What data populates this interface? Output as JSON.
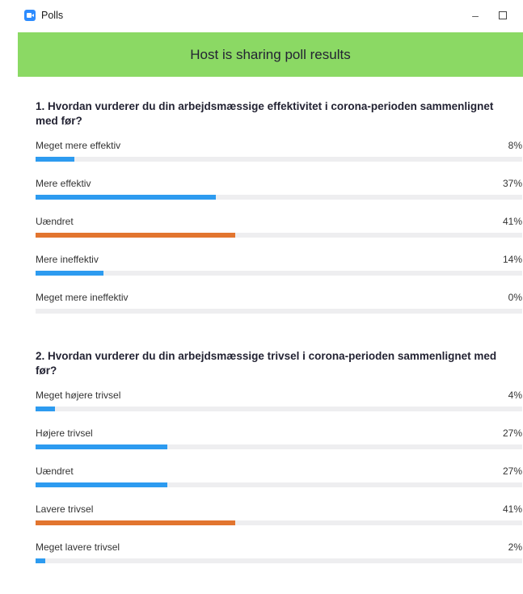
{
  "window": {
    "title": "Polls",
    "minimize_glyph": "–",
    "close_glyph": "✕"
  },
  "banner": {
    "text": "Host is sharing poll results",
    "color": "#8bd964"
  },
  "colors": {
    "bar": "#2d9bf0",
    "bar_top": "#e2752f",
    "track": "#eeeef0"
  },
  "questions": [
    {
      "text": "1. Hvordan vurderer du din arbejdsmæssige effektivitet i corona-perioden sammenlignet med før?",
      "answers": [
        {
          "label": "Meget mere effektiv",
          "percent_text": "8%",
          "percent": 8,
          "top": false
        },
        {
          "label": "Mere effektiv",
          "percent_text": "37%",
          "percent": 37,
          "top": false
        },
        {
          "label": "Uændret",
          "percent_text": "41%",
          "percent": 41,
          "top": true
        },
        {
          "label": "Mere ineffektiv",
          "percent_text": "14%",
          "percent": 14,
          "top": false
        },
        {
          "label": "Meget mere ineffektiv",
          "percent_text": "0%",
          "percent": 0,
          "top": false
        }
      ]
    },
    {
      "text": "2. Hvordan vurderer du din arbejdsmæssige trivsel i corona-perioden sammenlignet med før?",
      "answers": [
        {
          "label": "Meget højere trivsel",
          "percent_text": "4%",
          "percent": 4,
          "top": false
        },
        {
          "label": "Højere trivsel",
          "percent_text": "27%",
          "percent": 27,
          "top": false
        },
        {
          "label": "Uændret",
          "percent_text": "27%",
          "percent": 27,
          "top": false
        },
        {
          "label": "Lavere trivsel",
          "percent_text": "41%",
          "percent": 41,
          "top": true
        },
        {
          "label": "Meget lavere trivsel",
          "percent_text": "2%",
          "percent": 2,
          "top": false
        }
      ]
    }
  ]
}
